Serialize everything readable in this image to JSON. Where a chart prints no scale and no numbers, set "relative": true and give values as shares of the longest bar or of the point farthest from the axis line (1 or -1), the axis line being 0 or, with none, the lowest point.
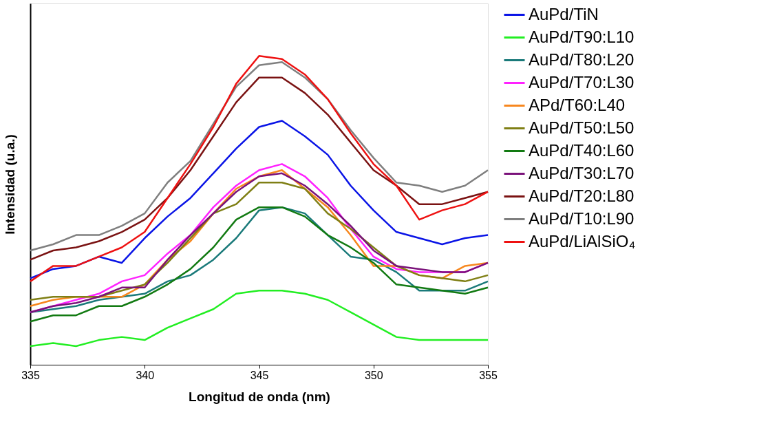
{
  "chart_data": {
    "type": "line",
    "xlabel": "Longitud de onda (nm)",
    "ylabel": "Intensidad (u.a.)",
    "relative": true,
    "tick_labels": "x",
    "legend": "right",
    "grid": false,
    "marker": "none",
    "line_style": "solid",
    "x": [
      335,
      336,
      337,
      338,
      339,
      340,
      341,
      342,
      343,
      344,
      345,
      346,
      347,
      348,
      349,
      350,
      351,
      352,
      353,
      354,
      355
    ],
    "xlim": [
      335,
      355
    ],
    "xticks": [
      335,
      340,
      345,
      350,
      355
    ],
    "series": [
      {
        "name": "AuPd/TiN",
        "color": "#0a14e6",
        "values": [
          0.28,
          0.31,
          0.32,
          0.35,
          0.33,
          0.41,
          0.48,
          0.54,
          0.62,
          0.7,
          0.77,
          0.79,
          0.74,
          0.68,
          0.58,
          0.5,
          0.43,
          0.41,
          0.39,
          0.41,
          0.42
        ]
      },
      {
        "name": "AuPd/T90:L10",
        "color": "#22ee22",
        "values": [
          0.06,
          0.07,
          0.06,
          0.08,
          0.09,
          0.08,
          0.12,
          0.15,
          0.18,
          0.23,
          0.24,
          0.24,
          0.23,
          0.21,
          0.17,
          0.13,
          0.09,
          0.08,
          0.08,
          0.08,
          0.08
        ]
      },
      {
        "name": "AuPd/T80:L20",
        "color": "#1a7a7a",
        "values": [
          0.17,
          0.18,
          0.19,
          0.21,
          0.22,
          0.23,
          0.27,
          0.29,
          0.34,
          0.41,
          0.5,
          0.51,
          0.49,
          0.42,
          0.35,
          0.34,
          0.3,
          0.24,
          0.24,
          0.24,
          0.27
        ]
      },
      {
        "name": "AuPd/T70:L30",
        "color": "#ff22ff",
        "values": [
          0.17,
          0.19,
          0.21,
          0.23,
          0.27,
          0.29,
          0.36,
          0.42,
          0.51,
          0.58,
          0.63,
          0.65,
          0.61,
          0.54,
          0.44,
          0.35,
          0.31,
          0.3,
          0.3,
          0.3,
          0.33
        ]
      },
      {
        "name": "APd/T60:L40",
        "color": "#f7871e",
        "values": [
          0.19,
          0.21,
          0.22,
          0.22,
          0.22,
          0.26,
          0.34,
          0.4,
          0.49,
          0.57,
          0.61,
          0.63,
          0.57,
          0.51,
          0.42,
          0.32,
          0.32,
          0.29,
          0.28,
          0.32,
          0.33
        ]
      },
      {
        "name": "AuPd/T50:L50",
        "color": "#7f7f14",
        "values": [
          0.21,
          0.22,
          0.22,
          0.22,
          0.24,
          0.26,
          0.33,
          0.41,
          0.49,
          0.52,
          0.59,
          0.59,
          0.57,
          0.49,
          0.44,
          0.38,
          0.32,
          0.29,
          0.28,
          0.27,
          0.29
        ]
      },
      {
        "name": "AuPd/T40:L60",
        "color": "#127a12",
        "values": [
          0.14,
          0.16,
          0.16,
          0.19,
          0.19,
          0.22,
          0.26,
          0.31,
          0.38,
          0.47,
          0.51,
          0.51,
          0.48,
          0.42,
          0.38,
          0.33,
          0.26,
          0.25,
          0.24,
          0.23,
          0.25
        ]
      },
      {
        "name": "AuPd/T30:L70",
        "color": "#7a127a",
        "values": [
          0.17,
          0.19,
          0.2,
          0.22,
          0.25,
          0.25,
          0.34,
          0.42,
          0.49,
          0.56,
          0.61,
          0.62,
          0.58,
          0.52,
          0.45,
          0.37,
          0.32,
          0.31,
          0.3,
          0.3,
          0.33
        ]
      },
      {
        "name": "AuPd/T20:L80",
        "color": "#7a1212",
        "values": [
          0.34,
          0.37,
          0.38,
          0.4,
          0.43,
          0.47,
          0.54,
          0.63,
          0.74,
          0.85,
          0.93,
          0.93,
          0.88,
          0.81,
          0.72,
          0.63,
          0.58,
          0.52,
          0.52,
          0.54,
          0.56
        ]
      },
      {
        "name": "AuPd/T10:L90",
        "color": "#7f7f7f",
        "values": [
          0.37,
          0.39,
          0.42,
          0.42,
          0.45,
          0.49,
          0.59,
          0.66,
          0.78,
          0.9,
          0.97,
          0.98,
          0.93,
          0.86,
          0.76,
          0.67,
          0.59,
          0.58,
          0.56,
          0.58,
          0.63
        ]
      },
      {
        "name": "AuPd/LiAlSiO₄",
        "color": "#ee1111",
        "values": [
          0.27,
          0.32,
          0.32,
          0.35,
          0.38,
          0.43,
          0.54,
          0.65,
          0.77,
          0.91,
          1,
          0.99,
          0.94,
          0.86,
          0.75,
          0.65,
          0.58,
          0.47,
          0.5,
          0.52,
          0.56
        ]
      }
    ]
  }
}
